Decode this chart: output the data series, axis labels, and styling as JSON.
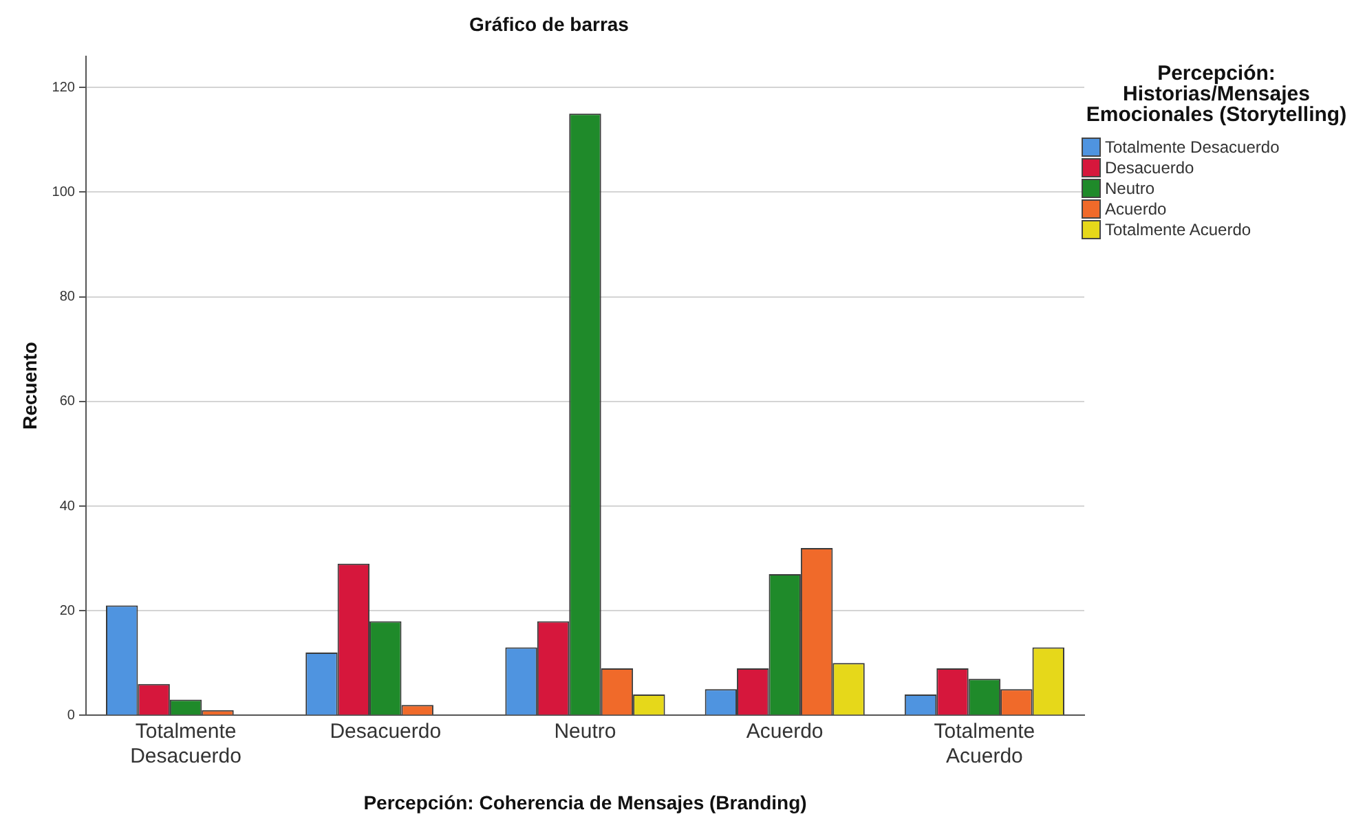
{
  "chart_data": {
    "type": "bar",
    "title": "Gráfico de barras",
    "xlabel": "Percepción: Coherencia de Mensajes (Branding)",
    "ylabel": "Recuento",
    "legend_title": "Percepción: Historias/Mensajes Emocionales (Storytelling)",
    "categories": [
      "Totalmente Desacuerdo",
      "Desacuerdo",
      "Neutro",
      "Acuerdo",
      "Totalmente Acuerdo"
    ],
    "series": [
      {
        "name": "Totalmente Desacuerdo",
        "color": "#4f94e0",
        "values": [
          21,
          12,
          13,
          5,
          4
        ]
      },
      {
        "name": "Desacuerdo",
        "color": "#d6173c",
        "values": [
          6,
          29,
          18,
          9,
          9
        ]
      },
      {
        "name": "Neutro",
        "color": "#1f8a2a",
        "values": [
          3,
          18,
          115,
          27,
          7
        ]
      },
      {
        "name": "Acuerdo",
        "color": "#f06a2a",
        "values": [
          1,
          2,
          9,
          32,
          5
        ]
      },
      {
        "name": "Totalmente Acuerdo",
        "color": "#e6d81a",
        "values": [
          null,
          null,
          4,
          10,
          13
        ]
      }
    ],
    "ylim": [
      0,
      126
    ],
    "yticks": [
      0,
      20,
      40,
      60,
      80,
      100,
      120
    ],
    "grid": "y",
    "legend": "right"
  }
}
